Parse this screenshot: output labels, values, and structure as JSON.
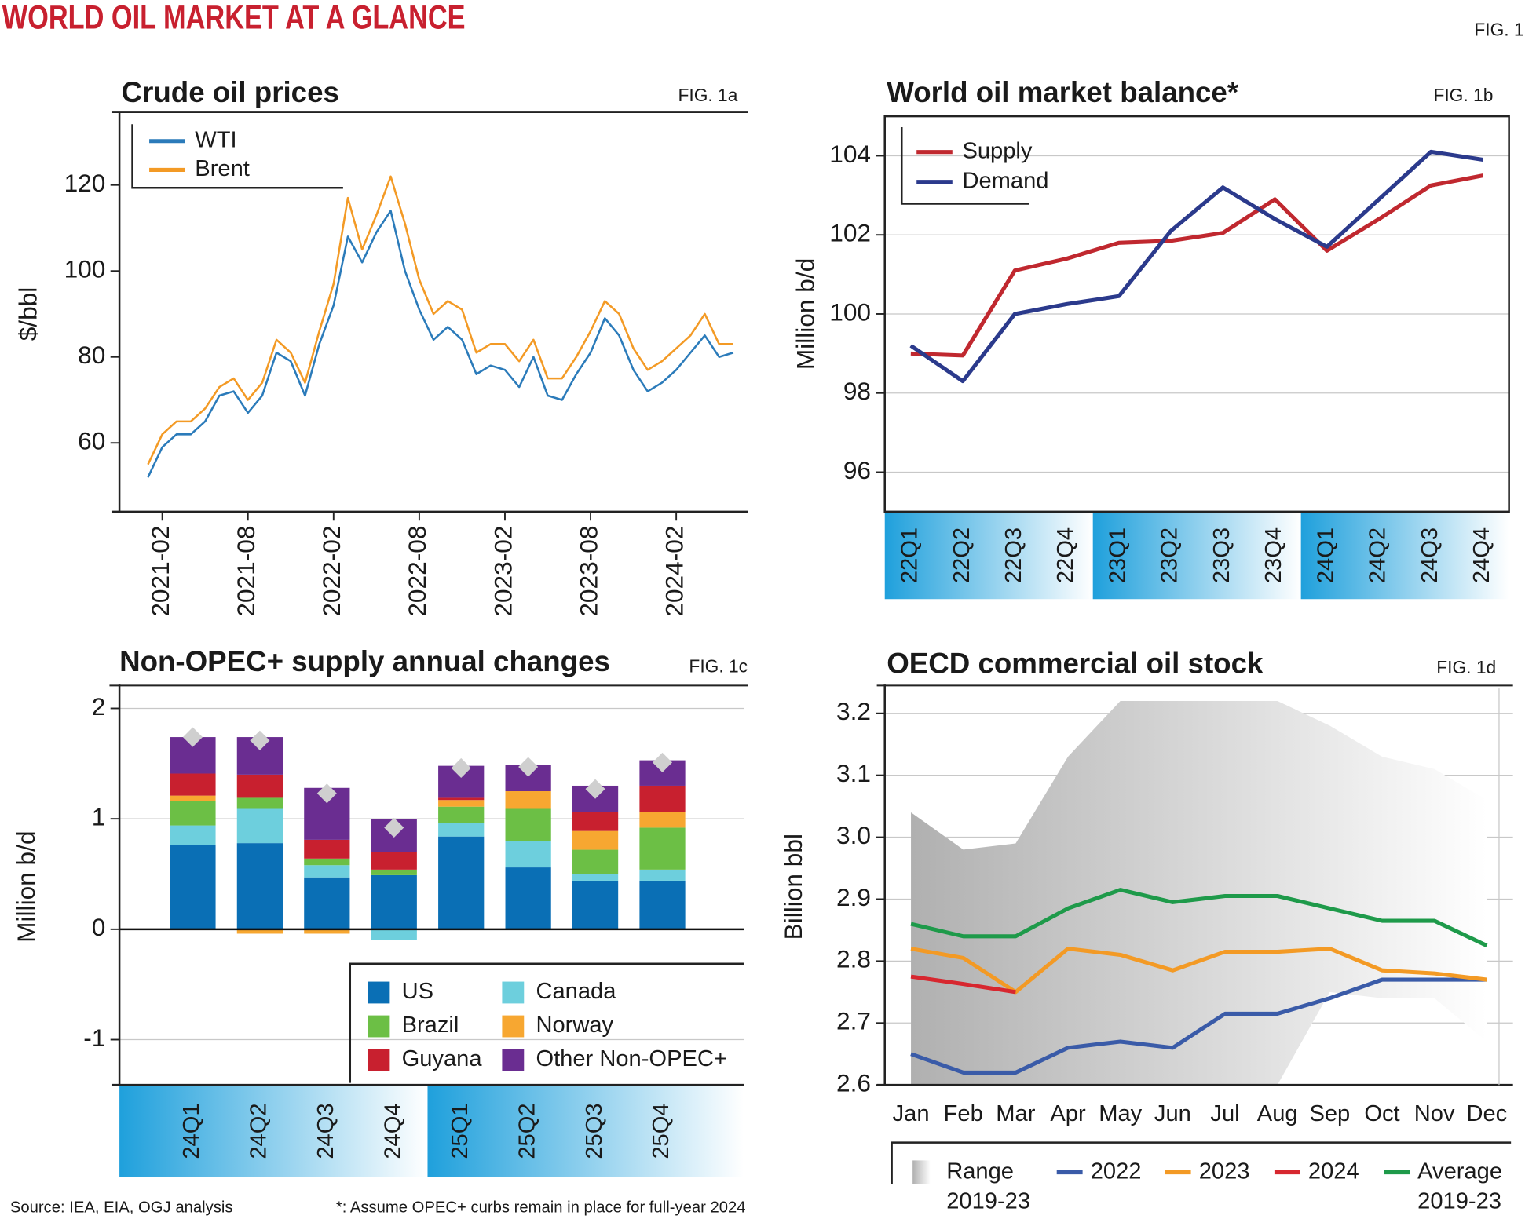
{
  "header": {
    "title": "WORLD OIL MARKET AT A GLANCE",
    "figure": "FIG. 1",
    "source": "Source: IEA, EIA, OGJ analysis",
    "footnote": "*: Assume OPEC+ curbs remain in place for full-year 2024"
  },
  "chart_data": [
    {
      "type": "line",
      "title": "Crude oil prices",
      "figure": "FIG. 1a",
      "y_label": "$/bbl",
      "x": [
        "2021-01",
        "2021-02",
        "2021-03",
        "2021-04",
        "2021-05",
        "2021-06",
        "2021-07",
        "2021-08",
        "2021-09",
        "2021-10",
        "2021-11",
        "2021-12",
        "2022-01",
        "2022-02",
        "2022-03",
        "2022-04",
        "2022-05",
        "2022-06",
        "2022-07",
        "2022-08",
        "2022-09",
        "2022-10",
        "2022-11",
        "2022-12",
        "2023-01",
        "2023-02",
        "2023-03",
        "2023-04",
        "2023-05",
        "2023-06",
        "2023-07",
        "2023-08",
        "2023-09",
        "2023-10",
        "2023-11",
        "2023-12",
        "2024-01",
        "2024-02",
        "2024-03",
        "2024-04",
        "2024-05",
        "2024-06"
      ],
      "xlim": [
        "2020-11",
        "2024-07"
      ],
      "xticks": [
        "2021-02",
        "2021-08",
        "2022-02",
        "2022-08",
        "2023-02",
        "2023-08",
        "2024-02"
      ],
      "ylim": [
        44,
        136
      ],
      "yticks": [
        60,
        80,
        100,
        120
      ],
      "legend": "upper left",
      "series": [
        {
          "name": "WTI",
          "color": "#2b7bba",
          "values": [
            52,
            59,
            62,
            62,
            65,
            71,
            72,
            67,
            71,
            81,
            79,
            71,
            83,
            92,
            108,
            102,
            109,
            114,
            100,
            91,
            84,
            87,
            84,
            76,
            78,
            77,
            73,
            80,
            71,
            70,
            76,
            81,
            89,
            85,
            77,
            72,
            74,
            77,
            81,
            85,
            80,
            81
          ]
        },
        {
          "name": "Brent",
          "color": "#f39a25",
          "values": [
            55,
            62,
            65,
            65,
            68,
            73,
            75,
            70,
            74,
            84,
            81,
            74,
            86,
            97,
            117,
            105,
            113,
            122,
            111,
            98,
            90,
            93,
            91,
            81,
            83,
            83,
            79,
            84,
            75,
            75,
            80,
            86,
            93,
            90,
            82,
            77,
            79,
            82,
            85,
            90,
            83,
            83
          ]
        }
      ]
    },
    {
      "type": "line",
      "title": "World oil market balance*",
      "figure": "FIG. 1b",
      "y_label": "Million b/d",
      "categories": [
        "22Q1",
        "22Q2",
        "22Q3",
        "22Q4",
        "23Q1",
        "23Q2",
        "23Q3",
        "23Q4",
        "24Q1",
        "24Q2",
        "24Q3",
        "24Q4"
      ],
      "ylim": [
        95,
        105
      ],
      "yticks": [
        96,
        98,
        100,
        102,
        104
      ],
      "grid": true,
      "legend": "upper left",
      "series": [
        {
          "name": "Supply",
          "color": "#c0282f",
          "values": [
            99.0,
            98.95,
            101.1,
            101.4,
            101.8,
            101.85,
            102.05,
            102.9,
            101.6,
            102.4,
            103.25,
            103.5
          ]
        },
        {
          "name": "Demand",
          "color": "#2b3a8c",
          "values": [
            99.2,
            98.3,
            100.0,
            100.25,
            100.45,
            102.1,
            103.2,
            102.4,
            101.7,
            102.9,
            104.1,
            103.9
          ]
        }
      ]
    },
    {
      "type": "bar",
      "stacked": true,
      "title": "Non-OPEC+ supply annual changes",
      "figure": "FIG. 1c",
      "y_label": "Million b/d",
      "categories": [
        "24Q1",
        "24Q2",
        "24Q3",
        "24Q4",
        "25Q1",
        "25Q2",
        "25Q3",
        "25Q4"
      ],
      "ylim": [
        -1.41,
        2.18
      ],
      "yticks": [
        -1,
        0,
        1,
        2
      ],
      "grid": true,
      "legend": "lower right",
      "series": [
        {
          "name": "US",
          "color": "#0a6fb5",
          "values": [
            0.76,
            0.78,
            0.47,
            0.49,
            0.84,
            0.56,
            0.44,
            0.44
          ]
        },
        {
          "name": "Canada",
          "color": "#6dcfdd",
          "values": [
            0.18,
            0.31,
            0.11,
            -0.1,
            0.12,
            0.24,
            0.06,
            0.1
          ]
        },
        {
          "name": "Brazil",
          "color": "#6cbf45",
          "values": [
            0.22,
            0.1,
            0.06,
            0.05,
            0.15,
            0.29,
            0.22,
            0.38
          ]
        },
        {
          "name": "Norway",
          "color": "#f7a731",
          "values": [
            0.05,
            -0.04,
            -0.04,
            0,
            0.06,
            0.16,
            0.17,
            0.14
          ]
        },
        {
          "name": "Guyana",
          "color": "#c8202f",
          "values": [
            0.2,
            0.21,
            0.17,
            0.16,
            0.02,
            0,
            0.17,
            0.24
          ]
        },
        {
          "name": "Other Non-OPEC+",
          "color": "#6a2d91",
          "values": [
            0.33,
            0.34,
            0.47,
            0.3,
            0.29,
            0.24,
            0.24,
            0.23
          ]
        }
      ],
      "markers": {
        "color": "#cfcfcf",
        "values": [
          1.74,
          1.71,
          1.23,
          0.92,
          1.46,
          1.47,
          1.27,
          1.51
        ]
      }
    },
    {
      "type": "line",
      "title": "OECD commercial oil stock",
      "figure": "FIG. 1d",
      "y_label": "Billion bbl",
      "categories": [
        "Jan",
        "Feb",
        "Mar",
        "Apr",
        "May",
        "Jun",
        "Jul",
        "Aug",
        "Sep",
        "Oct",
        "Nov",
        "Dec"
      ],
      "ylim": [
        2.6,
        3.24
      ],
      "yticks": [
        2.6,
        2.7,
        2.8,
        2.9,
        {
          "value": 3,
          "label": "3.0"
        },
        3.1,
        3.2
      ],
      "grid": true,
      "legend": "bottom",
      "range": {
        "name": "Range 2019-23",
        "color": "#b0b0b0",
        "lower": [
          2.6,
          2.6,
          2.6,
          2.6,
          2.6,
          2.6,
          2.6,
          2.6,
          2.75,
          2.74,
          2.74,
          2.67
        ],
        "upper": [
          3.04,
          2.98,
          2.99,
          3.13,
          3.22,
          3.22,
          3.22,
          3.22,
          3.18,
          3.13,
          3.11,
          3.06
        ]
      },
      "series": [
        {
          "name": "2022",
          "color": "#3a5ba8",
          "values": [
            2.65,
            2.62,
            2.62,
            2.66,
            2.67,
            2.66,
            2.715,
            2.715,
            2.74,
            2.77,
            2.77,
            2.77
          ]
        },
        {
          "name": "2023",
          "color": "#f39a25",
          "values": [
            2.82,
            2.805,
            2.75,
            2.82,
            2.81,
            2.785,
            2.815,
            2.815,
            2.82,
            2.785,
            2.78,
            2.77
          ]
        },
        {
          "name": "2024",
          "color": "#d7272f",
          "values": [
            2.775,
            2.763,
            2.75,
            null,
            null,
            null,
            null,
            null,
            null,
            null,
            null,
            null
          ]
        },
        {
          "name": "Average 2019-23",
          "color": "#1e9a4a",
          "values": [
            2.86,
            2.84,
            2.84,
            2.885,
            2.915,
            2.895,
            2.905,
            2.905,
            2.885,
            2.865,
            2.865,
            2.825
          ]
        }
      ]
    }
  ]
}
